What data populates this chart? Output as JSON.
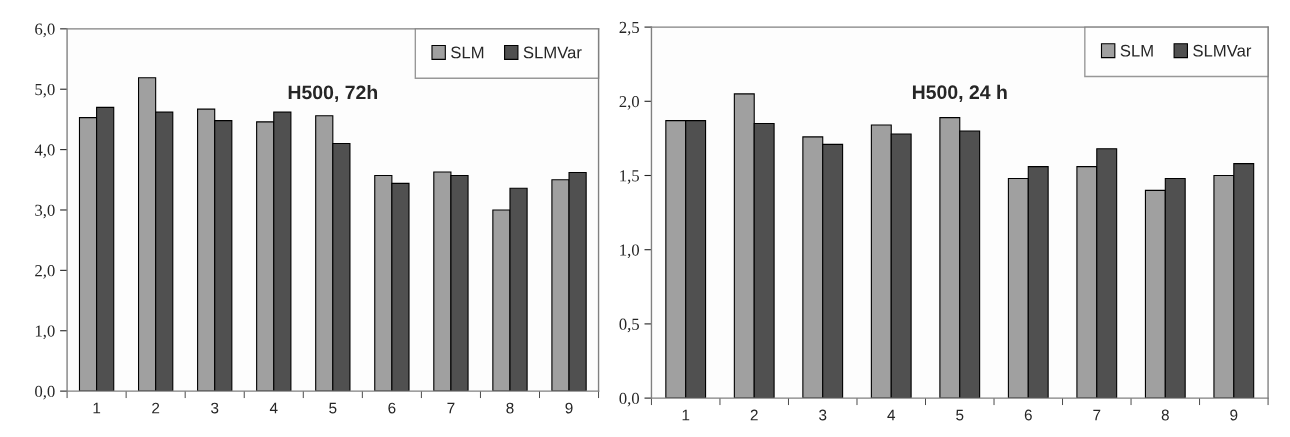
{
  "chart_data": [
    {
      "type": "bar",
      "title": "H500, 72h",
      "categories": [
        "1",
        "2",
        "3",
        "4",
        "5",
        "6",
        "7",
        "8",
        "9"
      ],
      "series": [
        {
          "name": "SLM",
          "color": "#a0a0a0",
          "values": [
            4.53,
            5.19,
            4.67,
            4.46,
            4.56,
            3.57,
            3.63,
            3.0,
            3.5
          ]
        },
        {
          "name": "SLMVar",
          "color": "#505050",
          "values": [
            4.7,
            4.62,
            4.48,
            4.62,
            4.1,
            3.44,
            3.57,
            3.36,
            3.62
          ]
        }
      ],
      "ylim": [
        0,
        6
      ],
      "yticks": [
        {
          "value": 0,
          "label": "0,0"
        },
        {
          "value": 1,
          "label": "1,0"
        },
        {
          "value": 2,
          "label": "2,0"
        },
        {
          "value": 3,
          "label": "3,0"
        },
        {
          "value": 4,
          "label": "4,0"
        },
        {
          "value": 5,
          "label": "5,0"
        },
        {
          "value": 6,
          "label": "6,0"
        }
      ],
      "grid": false,
      "legend": "top right"
    },
    {
      "type": "bar",
      "title": "H500, 24 h",
      "categories": [
        "1",
        "2",
        "3",
        "4",
        "5",
        "6",
        "7",
        "8",
        "9"
      ],
      "series": [
        {
          "name": "SLM",
          "color": "#a0a0a0",
          "values": [
            1.87,
            2.05,
            1.76,
            1.84,
            1.89,
            1.48,
            1.56,
            1.4,
            1.5
          ]
        },
        {
          "name": "SLMVar",
          "color": "#505050",
          "values": [
            1.87,
            1.85,
            1.71,
            1.78,
            1.8,
            1.56,
            1.68,
            1.48,
            1.58
          ]
        }
      ],
      "ylim": [
        0,
        2.5
      ],
      "yticks": [
        {
          "value": 0,
          "label": "0,0"
        },
        {
          "value": 0.5,
          "label": "0,5"
        },
        {
          "value": 1,
          "label": "1,0"
        },
        {
          "value": 1.5,
          "label": "1,5"
        },
        {
          "value": 2,
          "label": "2,0"
        },
        {
          "value": 2.5,
          "label": "2,5"
        }
      ],
      "grid": false,
      "legend": "top right"
    }
  ]
}
